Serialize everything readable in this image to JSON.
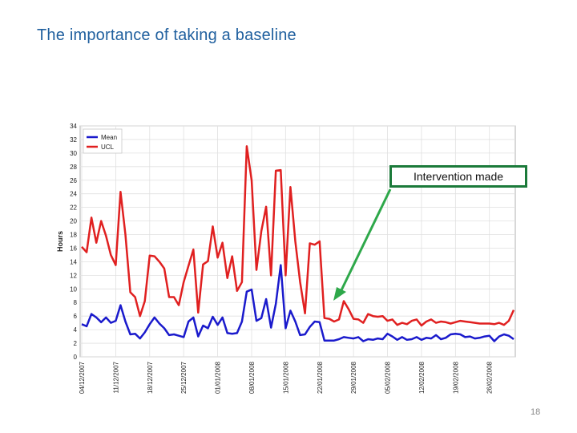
{
  "slide": {
    "title": "The importance of taking a baseline",
    "page_number": "18"
  },
  "annotation": {
    "text": "Intervention made",
    "box_color": "#1b7a3a",
    "arrow_color": "#2ea84a"
  },
  "chart_data": {
    "type": "line",
    "ylabel": "Hours",
    "xlabel": "",
    "ylim": [
      0,
      34
    ],
    "y_ticks": [
      0,
      2,
      4,
      6,
      8,
      10,
      12,
      14,
      16,
      18,
      20,
      22,
      24,
      26,
      28,
      30,
      32,
      34
    ],
    "x_tick_labels": [
      "04/12/2007",
      "11/12/2007",
      "18/12/2007",
      "25/12/2007",
      "01/01/2008",
      "08/01/2008",
      "15/01/2008",
      "22/01/2008",
      "29/01/2008",
      "05/02/2008",
      "12/02/2008",
      "19/02/2008",
      "26/02/2008"
    ],
    "points_per_series": 90,
    "legend": {
      "placement": "top-left"
    },
    "grid": true,
    "series": [
      {
        "name": "Mean",
        "color": "#1a1acc",
        "values": [
          4.8,
          4.5,
          6.3,
          5.8,
          5.1,
          5.8,
          5.0,
          5.3,
          7.6,
          5.2,
          3.3,
          3.4,
          2.7,
          3.6,
          4.8,
          5.8,
          4.9,
          4.2,
          3.2,
          3.3,
          3.1,
          2.9,
          5.2,
          5.8,
          3.0,
          4.6,
          4.2,
          5.9,
          4.7,
          5.8,
          3.5,
          3.4,
          3.5,
          5.2,
          9.6,
          9.9,
          5.3,
          5.7,
          8.5,
          4.3,
          7.8,
          13.5,
          4.2,
          6.8,
          5.2,
          3.2,
          3.3,
          4.4,
          5.2,
          5.1,
          2.4,
          2.4,
          2.4,
          2.6,
          2.9,
          2.8,
          2.7,
          2.9,
          2.3,
          2.6,
          2.5,
          2.7,
          2.6,
          3.4,
          3.0,
          2.5,
          2.9,
          2.5,
          2.6,
          2.9,
          2.5,
          2.8,
          2.7,
          3.2,
          2.6,
          2.8,
          3.3,
          3.4,
          3.3,
          2.9,
          3.0,
          2.7,
          2.8,
          3.0,
          3.1,
          2.3,
          3.0,
          3.3,
          3.1,
          2.6
        ]
      },
      {
        "name": "UCL",
        "color": "#e02020",
        "values": [
          16.2,
          15.4,
          20.5,
          16.8,
          20.0,
          17.8,
          15.0,
          13.5,
          24.3,
          18.0,
          9.5,
          8.8,
          6.0,
          8.2,
          14.9,
          14.8,
          14.0,
          13.0,
          8.8,
          8.8,
          7.6,
          11.0,
          13.4,
          15.8,
          6.5,
          13.6,
          14.1,
          19.2,
          14.6,
          16.8,
          11.6,
          14.8,
          9.7,
          11.0,
          31.0,
          26.0,
          12.8,
          18.5,
          22.1,
          12.0,
          27.4,
          27.5,
          12.0,
          25.0,
          17.0,
          11.0,
          6.4,
          16.7,
          16.5,
          17.0,
          5.7,
          5.6,
          5.2,
          5.5,
          8.2,
          7.0,
          5.6,
          5.5,
          5.0,
          6.3,
          6.0,
          5.9,
          6.0,
          5.3,
          5.5,
          4.7,
          5.0,
          4.8,
          5.3,
          5.5,
          4.6,
          5.2,
          5.5,
          5.0,
          5.2,
          5.1,
          4.9,
          5.1,
          5.3,
          5.2,
          5.1,
          5.0,
          4.9,
          4.9,
          4.9,
          4.8,
          5.0,
          4.7,
          5.3,
          6.9
        ]
      }
    ]
  }
}
